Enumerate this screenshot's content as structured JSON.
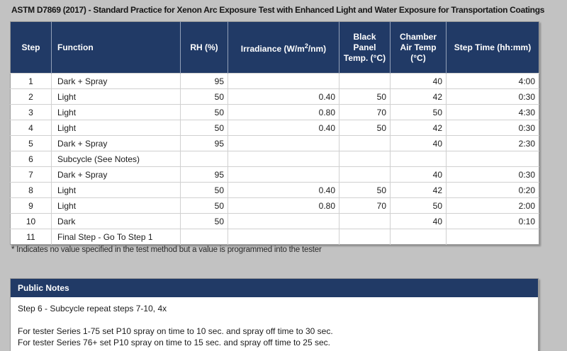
{
  "title": "ASTM D7869 (2017) - Standard Practice for Xenon Arc Exposure Test with Enhanced Light and Water Exposure for Transportation Coatings",
  "colors": {
    "header_bg": "#213a66",
    "page_bg": "#c2c2c2"
  },
  "table": {
    "columns": [
      {
        "label": "Step"
      },
      {
        "label": "Function"
      },
      {
        "label": "RH (%)"
      },
      {
        "label_pre": "Irradiance (W/m",
        "label_sup": "2",
        "label_post": "/nm)"
      },
      {
        "label": "Black Panel Temp. (°C)"
      },
      {
        "label": "Chamber Air Temp (°C)"
      },
      {
        "label": "Step Time (hh:mm)"
      }
    ],
    "rows": [
      [
        "1",
        "Dark + Spray",
        "95",
        "",
        "",
        "40",
        "4:00"
      ],
      [
        "2",
        "Light",
        "50",
        "0.40",
        "50",
        "42",
        "0:30"
      ],
      [
        "3",
        "Light",
        "50",
        "0.80",
        "70",
        "50",
        "4:30"
      ],
      [
        "4",
        "Light",
        "50",
        "0.40",
        "50",
        "42",
        "0:30"
      ],
      [
        "5",
        "Dark + Spray",
        "95",
        "",
        "",
        "40",
        "2:30"
      ],
      [
        "6",
        "Subcycle (See Notes)",
        "",
        "",
        "",
        "",
        ""
      ],
      [
        "7",
        "Dark + Spray",
        "95",
        "",
        "",
        "40",
        "0:30"
      ],
      [
        "8",
        "Light",
        "50",
        "0.40",
        "50",
        "42",
        "0:20"
      ],
      [
        "9",
        "Light",
        "50",
        "0.80",
        "70",
        "50",
        "2:00"
      ],
      [
        "10",
        "Dark",
        "50",
        "",
        "",
        "40",
        "0:10"
      ],
      [
        "11",
        "Final Step - Go To Step 1",
        "",
        "",
        "",
        "",
        ""
      ]
    ],
    "footnote": "* Indicates no value specified in the test method but a value is programmed into the tester"
  },
  "public_notes": {
    "header": "Public Notes",
    "lines": [
      "Step 6 - Subcycle repeat steps 7-10, 4x",
      "",
      "For tester Series 1-75 set P10 spray on time to 10 sec. and spray off time to 30 sec.",
      "For tester Series 76+ set P10 spray on time to 15 sec. and spray off time to 25 sec."
    ]
  }
}
